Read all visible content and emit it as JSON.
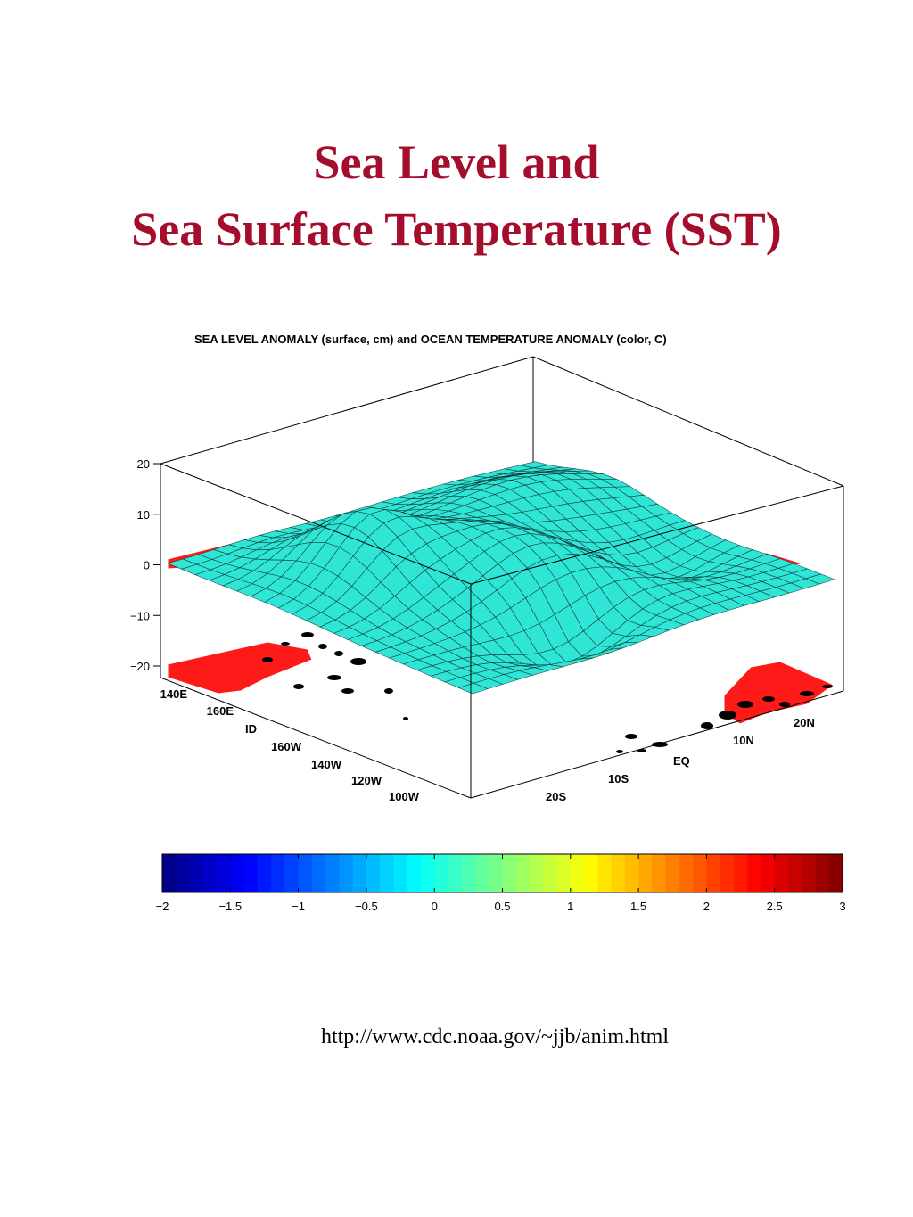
{
  "slide": {
    "title_line1": "Sea Level and",
    "title_line2": "Sea Surface Temperature (SST)",
    "source_url": "http://www.cdc.noaa.gov/~jjb/anim.html"
  },
  "chart_data": {
    "type": "surface",
    "title": "SEA LEVEL ANOMALY (surface, cm) and OCEAN TEMPERATURE ANOMALY (color, C)",
    "z_axis": {
      "ticks": [
        "20",
        "10",
        "0",
        "−10",
        "−20"
      ],
      "zlim": [
        -20,
        20
      ]
    },
    "lon_axis": {
      "ticks": [
        "140E",
        "160E",
        "ID",
        "160W",
        "140W",
        "120W",
        "100W"
      ]
    },
    "lat_axis": {
      "ticks": [
        "20S",
        "10S",
        "EQ",
        "10N",
        "20N"
      ]
    },
    "colorbar": {
      "ticks": [
        "−2",
        "−1.5",
        "−1",
        "−0.5",
        "0",
        "0.5",
        "1",
        "1.5",
        "2",
        "2.5",
        "3"
      ],
      "range": [
        -2,
        3
      ],
      "colormap": "jet"
    },
    "colors": {
      "surface": "#2fe6d6",
      "mesh": "#0a2a2a",
      "hot": "#ff1a1a",
      "land": "#000000"
    }
  }
}
